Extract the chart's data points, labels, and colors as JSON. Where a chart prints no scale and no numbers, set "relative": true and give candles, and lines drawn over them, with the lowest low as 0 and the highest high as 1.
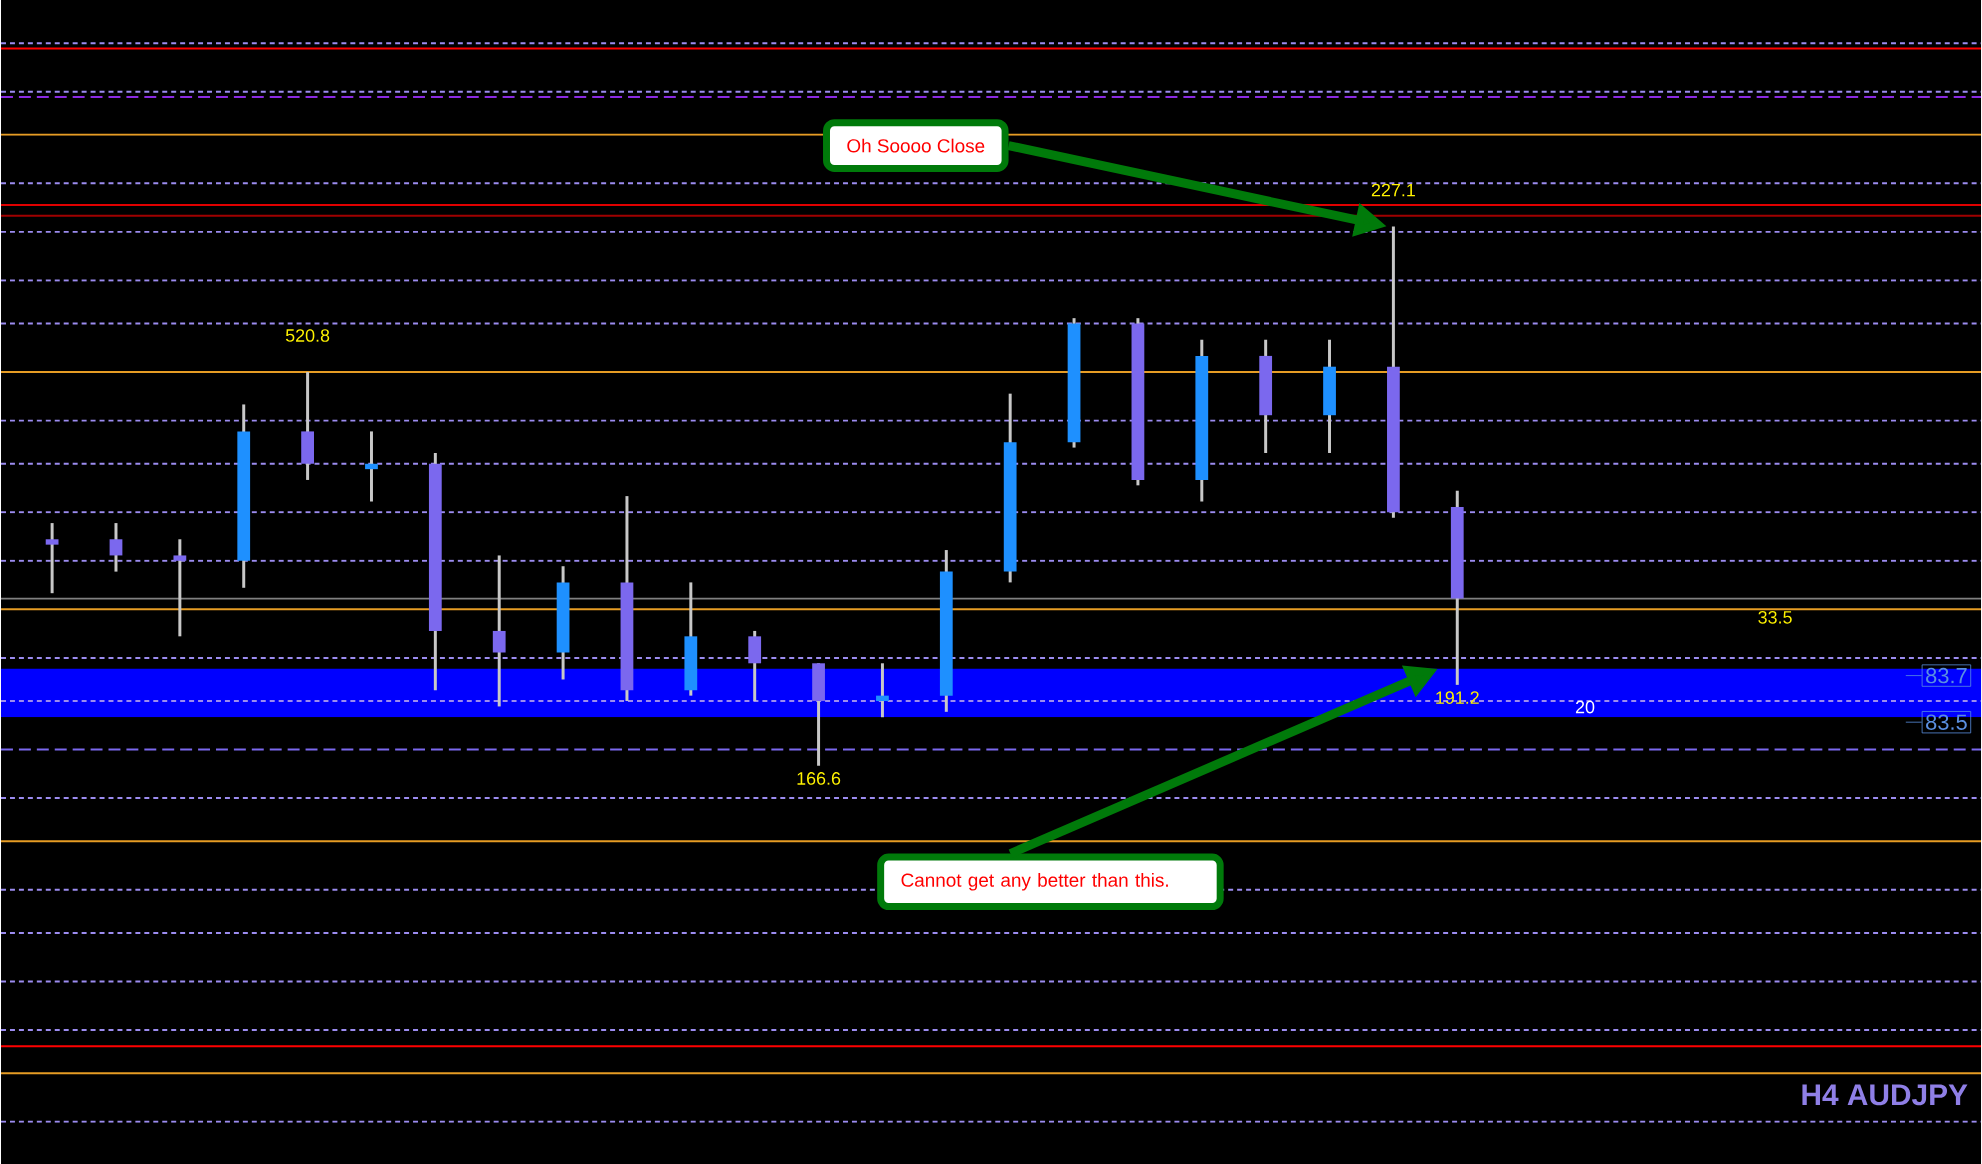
{
  "chart_data": {
    "type": "candlestick",
    "title": "H4 AUDJPY",
    "relative": true,
    "color": "#c8c8c8",
    "categories": [
      null,
      null,
      null,
      null,
      null,
      null,
      null,
      null,
      null,
      null,
      null,
      null,
      null,
      null,
      null,
      null,
      null,
      null,
      null,
      null,
      null,
      null,
      null
    ],
    "ohlc": [
      [
        0.42,
        0.45,
        0.32,
        0.41
      ],
      [
        0.42,
        0.45,
        0.36,
        0.39
      ],
      [
        0.39,
        0.42,
        0.24,
        0.38
      ],
      [
        0.38,
        0.67,
        0.33,
        0.62
      ],
      [
        0.62,
        0.73,
        0.53,
        0.56
      ],
      [
        0.55,
        0.62,
        0.49,
        0.56
      ],
      [
        0.56,
        0.58,
        0.14,
        0.25
      ],
      [
        0.25,
        0.39,
        0.11,
        0.21
      ],
      [
        0.21,
        0.37,
        0.16,
        0.34
      ],
      [
        0.34,
        0.5,
        0.12,
        0.14
      ],
      [
        0.14,
        0.34,
        0.13,
        0.24
      ],
      [
        0.24,
        0.25,
        0.12,
        0.19
      ],
      [
        0.19,
        0.19,
        0,
        0.12
      ],
      [
        0.12,
        0.19,
        0.09,
        0.13
      ],
      [
        0.13,
        0.4,
        0.1,
        0.36
      ],
      [
        0.36,
        0.69,
        0.34,
        0.6
      ],
      [
        0.6,
        0.83,
        0.59,
        0.82
      ],
      [
        0.82,
        0.83,
        0.52,
        0.53
      ],
      [
        0.53,
        0.79,
        0.49,
        0.76
      ],
      [
        0.76,
        0.79,
        0.58,
        0.65
      ],
      [
        0.65,
        0.79,
        0.58,
        0.74
      ],
      [
        0.74,
        1,
        0.46,
        0.47
      ],
      [
        0.48,
        0.51,
        0.15,
        0.31
      ]
    ],
    "colors": [
      "#7b68ee",
      "#7b68ee",
      "#7b68ee",
      "#1e90ff",
      "#7b68ee",
      "#1e90ff",
      "#7b68ee",
      "#7b68ee",
      "#1e90ff",
      "#7b68ee",
      "#1e90ff",
      "#7b68ee",
      "#7b68ee",
      "#1e90ff",
      "#1e90ff",
      "#1e90ff",
      "#1e90ff",
      "#7b68ee",
      "#1e90ff",
      "#7b68ee",
      "#1e90ff",
      "#7b68ee",
      "#7b68ee"
    ],
    "bands": [
      {
        "axis": "y",
        "from": 0.09,
        "to": 0.18,
        "color": "#0000ff"
      }
    ],
    "ref_lines": [
      {
        "axis": "y",
        "value": 1.34,
        "color": "#9c8cf0",
        "line_style": "dotted"
      },
      {
        "axis": "y",
        "value": 1.33,
        "color": "#ff0000",
        "line_style": "solid"
      },
      {
        "axis": "y",
        "value": 1.25,
        "color": "#9c8cf0",
        "line_style": "dotted"
      },
      {
        "axis": "y",
        "value": 1.24,
        "color": "#8b2be2",
        "line_style": "dashed"
      },
      {
        "axis": "y",
        "value": 1.17,
        "color": "#e69c24",
        "line_style": "solid"
      },
      {
        "axis": "y",
        "value": 1.08,
        "color": "#9c8cf0",
        "line_style": "dotted"
      },
      {
        "axis": "y",
        "value": 1.04,
        "color": "#e00000",
        "line_style": "solid"
      },
      {
        "axis": "y",
        "value": 1.02,
        "color": "#a00000",
        "line_style": "solid"
      },
      {
        "axis": "y",
        "value": 0.99,
        "color": "#9c8cf0",
        "line_style": "dotted"
      },
      {
        "axis": "y",
        "value": 0.9,
        "color": "#9c8cf0",
        "line_style": "dotted"
      },
      {
        "axis": "y",
        "value": 0.82,
        "color": "#9c8cf0",
        "line_style": "dotted"
      },
      {
        "axis": "y",
        "value": 0.73,
        "color": "#e69c24",
        "line_style": "solid"
      },
      {
        "axis": "y",
        "value": 0.64,
        "color": "#9c8cf0",
        "line_style": "dotted"
      },
      {
        "axis": "y",
        "value": 0.56,
        "color": "#9c8cf0",
        "line_style": "dotted"
      },
      {
        "axis": "y",
        "value": 0.47,
        "color": "#9c8cf0",
        "line_style": "dotted"
      },
      {
        "axis": "y",
        "value": 0.38,
        "color": "#9c8cf0",
        "line_style": "dotted"
      },
      {
        "axis": "y",
        "value": 0.31,
        "color": "#808080",
        "line_style": "solid"
      },
      {
        "axis": "y",
        "value": 0.29,
        "color": "#e69c24",
        "line_style": "solid"
      },
      {
        "axis": "y",
        "value": 0.2,
        "color": "#9c8cf0",
        "line_style": "dotted"
      },
      {
        "axis": "y",
        "value": 0.12,
        "color": "#9c8cf0",
        "line_style": "dotted"
      },
      {
        "axis": "y",
        "value": 0.03,
        "color": "#7b68ee",
        "line_style": "dashed"
      },
      {
        "axis": "y",
        "value": -0.06,
        "color": "#9c8cf0",
        "line_style": "dotted"
      },
      {
        "axis": "y",
        "value": -0.14,
        "color": "#e69c24",
        "line_style": "solid"
      },
      {
        "axis": "y",
        "value": -0.23,
        "color": "#9c8cf0",
        "line_style": "dotted"
      },
      {
        "axis": "y",
        "value": -0.31,
        "color": "#9c8cf0",
        "line_style": "dotted"
      },
      {
        "axis": "y",
        "value": -0.4,
        "color": "#9c8cf0",
        "line_style": "dotted"
      },
      {
        "axis": "y",
        "value": -0.49,
        "color": "#9c8cf0",
        "line_style": "dotted"
      },
      {
        "axis": "y",
        "value": -0.52,
        "color": "#ff0000",
        "line_style": "solid"
      },
      {
        "axis": "y",
        "value": -0.57,
        "color": "#e69c24",
        "line_style": "solid"
      },
      {
        "axis": "y",
        "value": -0.66,
        "color": "#9c8cf0",
        "line_style": "dotted"
      }
    ],
    "annotations": [
      "Oh Soooo Close",
      {
        "text": "227.1",
        "y": 1
      },
      {
        "text": "520.8",
        "y": 0.73
      },
      {
        "text": "166.6",
        "y": 0
      },
      {
        "text": "191.2",
        "y": 0.15
      },
      "Cannot get any better than this.",
      "33.5",
      "20",
      "83.7",
      "83.5"
    ]
  }
}
